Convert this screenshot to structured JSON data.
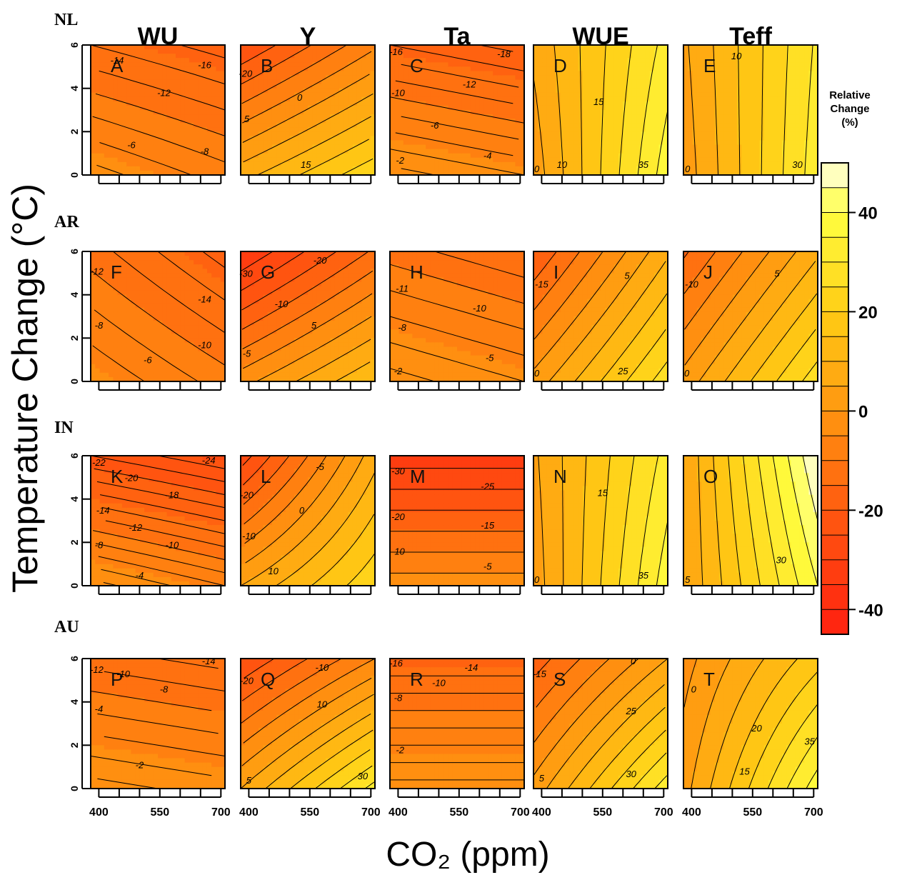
{
  "figure": {
    "y_axis_title": "Temperature Change (°C)",
    "x_axis_title": "CO₂ (ppm)",
    "colorbar_title": [
      "Relative",
      "Change",
      "(%)"
    ]
  },
  "chart_data": {
    "type": "heatmap",
    "x": {
      "ticks": [
        400,
        550,
        700
      ],
      "range": [
        380,
        710
      ],
      "unit": "ppm"
    },
    "y": {
      "ticks": [
        0,
        2,
        4,
        6
      ],
      "range": [
        0,
        6
      ],
      "unit": "°C"
    },
    "columns": [
      "WU",
      "Y",
      "Ta",
      "WUE",
      "Teff"
    ],
    "rows": [
      "NL",
      "AR",
      "IN",
      "AU"
    ],
    "colorbar": {
      "range": [
        -45,
        50
      ],
      "ticks": [
        -40,
        -20,
        0,
        20,
        40
      ],
      "colors": [
        "#ff2a10",
        "#ff9a10",
        "#ffff40",
        "#ffffe8"
      ]
    },
    "panels": [
      {
        "letter": "A",
        "row": "NL",
        "col": "WU",
        "corners": {
          "bl": -3,
          "br": -7,
          "tl": -14,
          "tr": -17
        },
        "labels": [
          {
            "text": "-14",
            "x": 445,
            "y": 5.3
          },
          {
            "text": "-16",
            "x": 660,
            "y": 5.1
          },
          {
            "text": "-12",
            "x": 560,
            "y": 3.8
          },
          {
            "text": "-6",
            "x": 480,
            "y": 1.4
          },
          {
            "text": "-8",
            "x": 660,
            "y": 1.1
          }
        ]
      },
      {
        "letter": "B",
        "row": "NL",
        "col": "Y",
        "corners": {
          "bl": 8,
          "br": 24,
          "tl": -25,
          "tr": -6
        },
        "labels": [
          {
            "text": "-20",
            "x": 392,
            "y": 4.7
          },
          {
            "text": "0",
            "x": 525,
            "y": 3.6
          },
          {
            "text": "5",
            "x": 395,
            "y": 2.6
          },
          {
            "text": "15",
            "x": 540,
            "y": 0.5
          }
        ]
      },
      {
        "letter": "C",
        "row": "NL",
        "col": "Ta",
        "corners": {
          "bl": -1,
          "br": -4,
          "tl": -16,
          "tr": -19
        },
        "labels": [
          {
            "text": "-16",
            "x": 395,
            "y": 5.7
          },
          {
            "text": "-18",
            "x": 660,
            "y": 5.6
          },
          {
            "text": "-10",
            "x": 400,
            "y": 3.8
          },
          {
            "text": "-12",
            "x": 575,
            "y": 4.2
          },
          {
            "text": "-6",
            "x": 490,
            "y": 2.3
          },
          {
            "text": "-2",
            "x": 405,
            "y": 0.7
          },
          {
            "text": "-4",
            "x": 620,
            "y": 0.9
          }
        ]
      },
      {
        "letter": "D",
        "row": "NL",
        "col": "WUE",
        "corners": {
          "bl": 2,
          "br": 38,
          "tl": 6,
          "tr": 32
        },
        "labels": [
          {
            "text": "15",
            "x": 540,
            "y": 3.4
          },
          {
            "text": "0",
            "x": 388,
            "y": 0.3
          },
          {
            "text": "10",
            "x": 450,
            "y": 0.5
          },
          {
            "text": "35",
            "x": 650,
            "y": 0.5
          }
        ]
      },
      {
        "letter": "E",
        "row": "NL",
        "col": "Teff",
        "corners": {
          "bl": 2,
          "br": 33,
          "tl": 4,
          "tr": 31
        },
        "labels": [
          {
            "text": "10",
            "x": 510,
            "y": 5.5
          },
          {
            "text": "0",
            "x": 390,
            "y": 0.3
          },
          {
            "text": "30",
            "x": 660,
            "y": 0.5
          }
        ]
      },
      {
        "letter": "F",
        "row": "AR",
        "col": "WU",
        "corners": {
          "bl": -4,
          "br": -9,
          "tl": -11,
          "tr": -17
        },
        "labels": [
          {
            "text": "-12",
            "x": 395,
            "y": 5.1
          },
          {
            "text": "-14",
            "x": 660,
            "y": 3.8
          },
          {
            "text": "-8",
            "x": 400,
            "y": 2.6
          },
          {
            "text": "-10",
            "x": 660,
            "y": 1.7
          },
          {
            "text": "-6",
            "x": 520,
            "y": 1.0
          }
        ]
      },
      {
        "letter": "G",
        "row": "AR",
        "col": "Y",
        "corners": {
          "bl": -2,
          "br": 15,
          "tl": -35,
          "tr": -14
        },
        "labels": [
          {
            "text": "-30",
            "x": 393,
            "y": 5.0
          },
          {
            "text": "-20",
            "x": 575,
            "y": 5.6
          },
          {
            "text": "-10",
            "x": 480,
            "y": 3.6
          },
          {
            "text": "-5",
            "x": 395,
            "y": 1.3
          },
          {
            "text": "5",
            "x": 560,
            "y": 2.6
          }
        ]
      },
      {
        "letter": "H",
        "row": "AR",
        "col": "Ta",
        "corners": {
          "bl": -1,
          "br": -4,
          "tl": -11,
          "tr": -14
        },
        "labels": [
          {
            "text": "-11",
            "x": 410,
            "y": 4.3
          },
          {
            "text": "-10",
            "x": 600,
            "y": 3.4
          },
          {
            "text": "-8",
            "x": 410,
            "y": 2.5
          },
          {
            "text": "-5",
            "x": 625,
            "y": 1.1
          },
          {
            "text": "-2",
            "x": 400,
            "y": 0.5
          }
        ]
      },
      {
        "letter": "I",
        "row": "AR",
        "col": "WUE",
        "corners": {
          "bl": 2,
          "br": 28,
          "tl": -20,
          "tr": 9
        },
        "labels": [
          {
            "text": "-15",
            "x": 400,
            "y": 4.5
          },
          {
            "text": "5",
            "x": 610,
            "y": 4.9
          },
          {
            "text": "0",
            "x": 388,
            "y": 0.4
          },
          {
            "text": "25",
            "x": 600,
            "y": 0.5
          }
        ]
      },
      {
        "letter": "J",
        "row": "AR",
        "col": "Teff",
        "corners": {
          "bl": 2,
          "br": 28,
          "tl": -16,
          "tr": 9
        },
        "labels": [
          {
            "text": "-10",
            "x": 400,
            "y": 4.5
          },
          {
            "text": "5",
            "x": 610,
            "y": 5.0
          },
          {
            "text": "0",
            "x": 388,
            "y": 0.4
          }
        ]
      },
      {
        "letter": "K",
        "row": "IN",
        "col": "WU",
        "corners": {
          "bl": -1,
          "br": -6,
          "tl": -22,
          "tr": -26
        },
        "labels": [
          {
            "text": "-22",
            "x": 400,
            "y": 5.7
          },
          {
            "text": "-24",
            "x": 670,
            "y": 5.8
          },
          {
            "text": "-20",
            "x": 480,
            "y": 5.0
          },
          {
            "text": "-18",
            "x": 580,
            "y": 4.2
          },
          {
            "text": "-14",
            "x": 410,
            "y": 3.5
          },
          {
            "text": "-12",
            "x": 490,
            "y": 2.7
          },
          {
            "text": "-10",
            "x": 580,
            "y": 1.9
          },
          {
            "text": "-8",
            "x": 400,
            "y": 1.9
          },
          {
            "text": "-4",
            "x": 500,
            "y": 0.5
          }
        ]
      },
      {
        "letter": "L",
        "row": "IN",
        "col": "Y",
        "corners": {
          "bl": 5,
          "br": 24,
          "tl": -28,
          "tr": 8
        },
        "labels": [
          {
            "text": "-20",
            "x": 395,
            "y": 4.2
          },
          {
            "text": "-5",
            "x": 575,
            "y": 5.5
          },
          {
            "text": "0",
            "x": 530,
            "y": 3.5
          },
          {
            "text": "-10",
            "x": 400,
            "y": 2.3
          },
          {
            "text": "10",
            "x": 460,
            "y": 0.7
          }
        ]
      },
      {
        "letter": "M",
        "row": "IN",
        "col": "Ta",
        "corners": {
          "bl": -2,
          "br": -2,
          "tl": -33,
          "tr": -33
        },
        "labels": [
          {
            "text": "-30",
            "x": 400,
            "y": 5.3
          },
          {
            "text": "-25",
            "x": 620,
            "y": 4.6
          },
          {
            "text": "-20",
            "x": 400,
            "y": 3.2
          },
          {
            "text": "-15",
            "x": 620,
            "y": 2.8
          },
          {
            "text": "-10",
            "x": 400,
            "y": 1.6
          },
          {
            "text": "-5",
            "x": 620,
            "y": 0.9
          }
        ]
      },
      {
        "letter": "N",
        "row": "IN",
        "col": "WUE",
        "corners": {
          "bl": 2,
          "br": 38,
          "tl": 4,
          "tr": 32
        },
        "labels": [
          {
            "text": "15",
            "x": 550,
            "y": 4.3
          },
          {
            "text": "0",
            "x": 388,
            "y": 0.3
          },
          {
            "text": "35",
            "x": 650,
            "y": 0.5
          }
        ]
      },
      {
        "letter": "O",
        "row": "IN",
        "col": "Teff",
        "corners": {
          "bl": 5,
          "br": 40,
          "tl": 5,
          "tr": 50
        },
        "labels": [
          {
            "text": "5",
            "x": 390,
            "y": 0.3
          },
          {
            "text": "30",
            "x": 620,
            "y": 1.2
          }
        ]
      },
      {
        "letter": "P",
        "row": "AU",
        "col": "WU",
        "corners": {
          "bl": -1,
          "br": -3,
          "tl": -13,
          "tr": -15
        },
        "labels": [
          {
            "text": "-12",
            "x": 395,
            "y": 5.5
          },
          {
            "text": "-14",
            "x": 670,
            "y": 5.9
          },
          {
            "text": "-10",
            "x": 460,
            "y": 5.3
          },
          {
            "text": "-8",
            "x": 560,
            "y": 4.6
          },
          {
            "text": "-4",
            "x": 400,
            "y": 3.7
          },
          {
            "text": "-2",
            "x": 500,
            "y": 1.1
          }
        ]
      },
      {
        "letter": "Q",
        "row": "AU",
        "col": "Y",
        "corners": {
          "bl": 5,
          "br": 32,
          "tl": -25,
          "tr": -5
        },
        "labels": [
          {
            "text": "-20",
            "x": 395,
            "y": 5.0
          },
          {
            "text": "-10",
            "x": 580,
            "y": 5.6
          },
          {
            "text": "10",
            "x": 580,
            "y": 3.9
          },
          {
            "text": "5",
            "x": 400,
            "y": 0.4
          },
          {
            "text": "30",
            "x": 680,
            "y": 0.6
          }
        ]
      },
      {
        "letter": "R",
        "row": "AU",
        "col": "Ta",
        "corners": {
          "bl": -1,
          "br": -1,
          "tl": -16,
          "tr": -16
        },
        "labels": [
          {
            "text": "-16",
            "x": 395,
            "y": 5.8
          },
          {
            "text": "-14",
            "x": 580,
            "y": 5.6
          },
          {
            "text": "-10",
            "x": 500,
            "y": 4.9
          },
          {
            "text": "-8",
            "x": 400,
            "y": 4.2
          },
          {
            "text": "-2",
            "x": 405,
            "y": 1.8
          }
        ]
      },
      {
        "letter": "S",
        "row": "AU",
        "col": "WUE",
        "corners": {
          "bl": 2,
          "br": 33,
          "tl": -18,
          "tr": 5
        },
        "labels": [
          {
            "text": "-15",
            "x": 395,
            "y": 5.3
          },
          {
            "text": "0",
            "x": 625,
            "y": 5.9
          },
          {
            "text": "25",
            "x": 620,
            "y": 3.6
          },
          {
            "text": "5",
            "x": 400,
            "y": 0.5
          },
          {
            "text": "30",
            "x": 620,
            "y": 0.7
          }
        ]
      },
      {
        "letter": "T",
        "row": "AU",
        "col": "Teff",
        "corners": {
          "bl": 3,
          "br": 38,
          "tl": -2,
          "tr": 18
        },
        "labels": [
          {
            "text": "0",
            "x": 405,
            "y": 4.6
          },
          {
            "text": "20",
            "x": 560,
            "y": 2.8
          },
          {
            "text": "15",
            "x": 530,
            "y": 0.8
          },
          {
            "text": "35",
            "x": 690,
            "y": 2.2
          }
        ]
      }
    ]
  }
}
